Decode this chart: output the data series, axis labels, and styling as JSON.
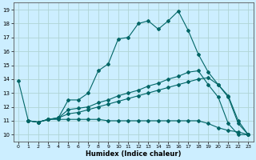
{
  "xlabel": "Humidex (Indice chaleur)",
  "bg_color": "#cceeff",
  "grid_color": "#b0d4d4",
  "line_color": "#006666",
  "xlim": [
    -0.5,
    23.5
  ],
  "ylim": [
    9.5,
    19.5
  ],
  "xticks": [
    0,
    1,
    2,
    3,
    4,
    5,
    6,
    7,
    8,
    9,
    10,
    11,
    12,
    13,
    14,
    15,
    16,
    17,
    18,
    19,
    20,
    21,
    22,
    23
  ],
  "yticks": [
    10,
    11,
    12,
    13,
    14,
    15,
    16,
    17,
    18,
    19
  ],
  "line1_x": [
    0,
    1,
    2,
    3,
    4,
    5,
    6,
    7,
    8,
    9,
    10,
    11,
    12,
    13,
    14,
    15,
    16,
    17,
    18,
    19,
    20,
    21,
    22,
    23
  ],
  "line1_y": [
    13.9,
    11.0,
    10.9,
    11.1,
    11.2,
    12.5,
    12.5,
    13.0,
    14.6,
    15.1,
    16.9,
    17.0,
    18.0,
    18.2,
    17.6,
    18.2,
    18.9,
    17.5,
    15.8,
    14.5,
    13.6,
    12.7,
    10.8,
    10.0
  ],
  "line2_x": [
    1,
    2,
    3,
    4,
    5,
    6,
    7,
    8,
    9,
    10,
    11,
    12,
    13,
    14,
    15,
    16,
    17,
    18,
    19,
    20,
    21,
    22,
    23
  ],
  "line2_y": [
    11.0,
    10.9,
    11.1,
    11.2,
    11.8,
    11.9,
    12.0,
    12.3,
    12.5,
    12.8,
    13.0,
    13.2,
    13.5,
    13.7,
    14.0,
    14.2,
    14.5,
    14.6,
    13.6,
    12.7,
    10.8,
    10.0,
    10.0
  ],
  "line3_x": [
    1,
    2,
    3,
    4,
    5,
    6,
    7,
    8,
    9,
    10,
    11,
    12,
    13,
    14,
    15,
    16,
    17,
    18,
    19,
    20,
    21,
    22,
    23
  ],
  "line3_y": [
    11.0,
    10.9,
    11.1,
    11.2,
    11.5,
    11.6,
    11.8,
    12.0,
    12.2,
    12.4,
    12.6,
    12.8,
    13.0,
    13.2,
    13.4,
    13.6,
    13.8,
    14.0,
    14.1,
    13.6,
    12.8,
    11.0,
    10.0
  ],
  "line4_x": [
    1,
    2,
    3,
    4,
    5,
    6,
    7,
    8,
    9,
    10,
    11,
    12,
    13,
    14,
    15,
    16,
    17,
    18,
    19,
    20,
    21,
    22,
    23
  ],
  "line4_y": [
    11.0,
    10.9,
    11.1,
    11.1,
    11.1,
    11.1,
    11.1,
    11.1,
    11.0,
    11.0,
    11.0,
    11.0,
    11.0,
    11.0,
    11.0,
    11.0,
    11.0,
    11.0,
    10.8,
    10.5,
    10.3,
    10.2,
    10.0
  ]
}
